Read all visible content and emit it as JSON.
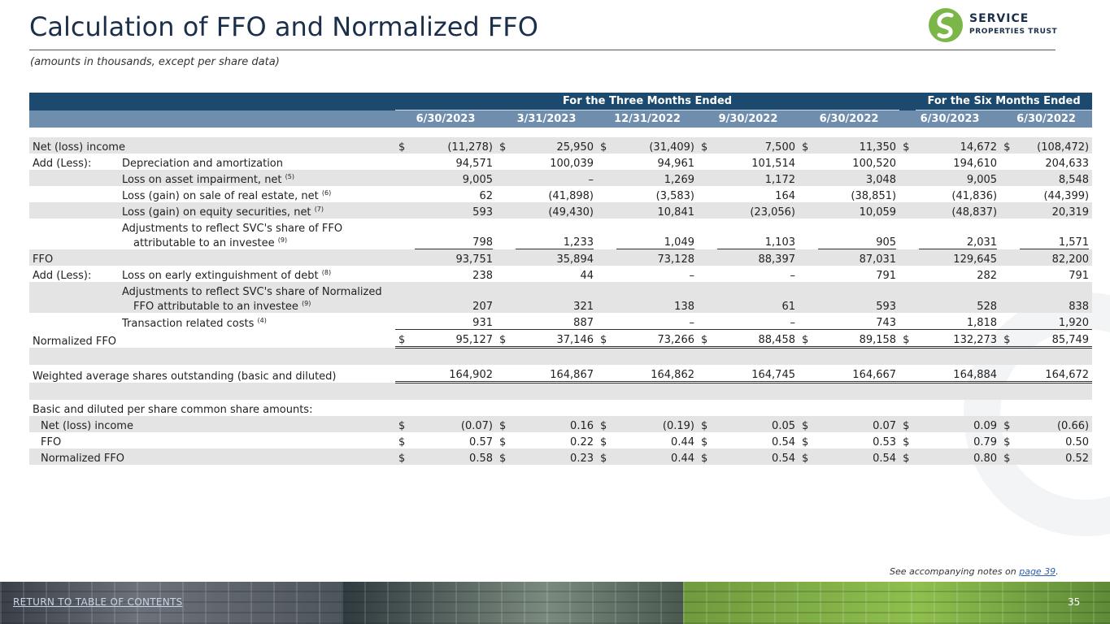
{
  "title": "Calculation of FFO and Normalized FFO",
  "subtitle": "(amounts in thousands, except per share data)",
  "logo": {
    "line1": "SERVICE",
    "line2": "PROPERTIES TRUST",
    "color": "#7ab648"
  },
  "table": {
    "group_headers": [
      "For the Three Months Ended",
      "For the Six Months Ended"
    ],
    "columns": [
      "6/30/2023",
      "3/31/2023",
      "12/31/2022",
      "9/30/2022",
      "6/30/2022",
      "6/30/2023",
      "6/30/2022"
    ],
    "currency": "$",
    "rows": {
      "net_income": {
        "label": "Net (loss) income",
        "values": [
          "(11,278)",
          "25,950",
          "(31,409)",
          "7,500",
          "11,350",
          "14,672",
          "(108,472)"
        ]
      },
      "depreciation": {
        "prefix": "Add (Less):",
        "label": "Depreciation and amortization",
        "values": [
          "94,571",
          "100,039",
          "94,961",
          "101,514",
          "100,520",
          "194,610",
          "204,633"
        ]
      },
      "impairment": {
        "label": "Loss on asset impairment, net",
        "note": "(5)",
        "values": [
          "9,005",
          "–",
          "1,269",
          "1,172",
          "3,048",
          "9,005",
          "8,548"
        ]
      },
      "sale_real_estate": {
        "label": "Loss (gain) on sale of real estate, net",
        "note": "(6)",
        "values": [
          "62",
          "(41,898)",
          "(3,583)",
          "164",
          "(38,851)",
          "(41,836)",
          "(44,399)"
        ]
      },
      "equity_securities": {
        "label": "Loss (gain) on equity securities, net",
        "note": "(7)",
        "values": [
          "593",
          "(49,430)",
          "10,841",
          "(23,056)",
          "10,059",
          "(48,837)",
          "20,319"
        ]
      },
      "investee_ffo": {
        "label_line1": "Adjustments to reflect SVC's share of FFO",
        "label_line2": "attributable to an investee",
        "note": "(9)",
        "values": [
          "798",
          "1,233",
          "1,049",
          "1,103",
          "905",
          "2,031",
          "1,571"
        ]
      },
      "ffo": {
        "label": "FFO",
        "values": [
          "93,751",
          "35,894",
          "73,128",
          "88,397",
          "87,031",
          "129,645",
          "82,200"
        ]
      },
      "early_extinguishment": {
        "prefix": "Add (Less):",
        "label": "Loss on early extinguishment of debt",
        "note": "(8)",
        "values": [
          "238",
          "44",
          "–",
          "–",
          "791",
          "282",
          "791"
        ]
      },
      "investee_normalized": {
        "label_line1": "Adjustments to reflect SVC's share of Normalized",
        "label_line2": "FFO attributable to an investee",
        "note": "(9)",
        "values": [
          "207",
          "321",
          "138",
          "61",
          "593",
          "528",
          "838"
        ]
      },
      "transaction_costs": {
        "label": "Transaction related costs",
        "note": "(4)",
        "values": [
          "931",
          "887",
          "–",
          "–",
          "743",
          "1,818",
          "1,920"
        ]
      },
      "normalized_ffo": {
        "label": "Normalized FFO",
        "values": [
          "95,127",
          "37,146",
          "73,266",
          "88,458",
          "89,158",
          "132,273",
          "85,749"
        ]
      },
      "weighted_shares": {
        "label": "Weighted average shares outstanding (basic and diluted)",
        "values": [
          "164,902",
          "164,867",
          "164,862",
          "164,745",
          "164,667",
          "164,884",
          "164,672"
        ]
      },
      "per_share_header": {
        "label": "Basic and diluted per share common share amounts:"
      },
      "ps_net_income": {
        "label": "Net (loss) income",
        "values": [
          "(0.07)",
          "0.16",
          "(0.19)",
          "0.05",
          "0.07",
          "0.09",
          "(0.66)"
        ]
      },
      "ps_ffo": {
        "label": "FFO",
        "values": [
          "0.57",
          "0.22",
          "0.44",
          "0.54",
          "0.53",
          "0.79",
          "0.50"
        ]
      },
      "ps_normalized_ffo": {
        "label": "Normalized FFO",
        "values": [
          "0.58",
          "0.23",
          "0.44",
          "0.54",
          "0.54",
          "0.80",
          "0.52"
        ]
      }
    }
  },
  "footnote": {
    "text": "See accompanying notes on ",
    "link": "page 39",
    "suffix": "."
  },
  "nav": {
    "toc_link": "RETURN TO TABLE OF CONTENTS",
    "page_number": "35"
  }
}
